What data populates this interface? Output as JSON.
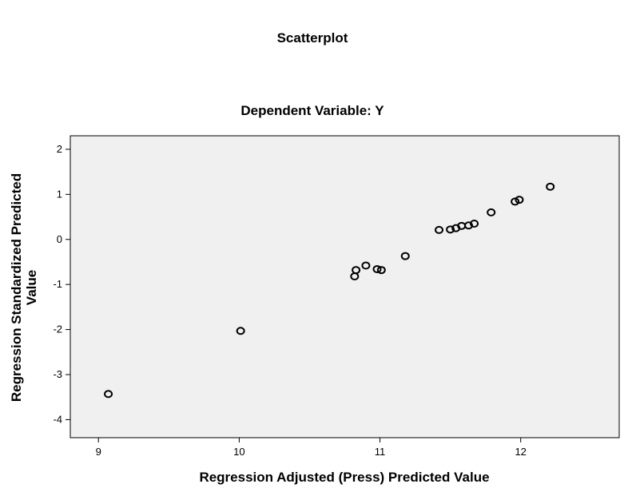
{
  "chart_data": {
    "type": "scatter",
    "title": "Scatterplot",
    "subtitle": "Dependent Variable: Y",
    "xlabel": "Regression Adjusted (Press) Predicted Value",
    "ylabel_line1": "Regression Standardized Predicted",
    "ylabel_line2": "Value",
    "xlim": [
      8.8,
      12.7
    ],
    "ylim": [
      -4.4,
      2.3
    ],
    "xticks": [
      9,
      10,
      11,
      12
    ],
    "yticks": [
      2,
      1,
      0,
      -1,
      -2,
      -3,
      -4
    ],
    "xtick_labels": [
      "9",
      "10",
      "11",
      "12"
    ],
    "ytick_labels": [
      "2",
      "1",
      "0",
      "-1",
      "-2",
      "-3",
      "-4"
    ],
    "points": [
      {
        "x": 9.07,
        "y": -3.43
      },
      {
        "x": 10.01,
        "y": -2.03
      },
      {
        "x": 10.82,
        "y": -0.82
      },
      {
        "x": 10.83,
        "y": -0.68
      },
      {
        "x": 10.9,
        "y": -0.58
      },
      {
        "x": 10.98,
        "y": -0.66
      },
      {
        "x": 11.01,
        "y": -0.68
      },
      {
        "x": 11.18,
        "y": -0.37
      },
      {
        "x": 11.42,
        "y": 0.21
      },
      {
        "x": 11.5,
        "y": 0.22
      },
      {
        "x": 11.54,
        "y": 0.25
      },
      {
        "x": 11.58,
        "y": 0.3
      },
      {
        "x": 11.63,
        "y": 0.31
      },
      {
        "x": 11.67,
        "y": 0.35
      },
      {
        "x": 11.79,
        "y": 0.6
      },
      {
        "x": 11.96,
        "y": 0.84
      },
      {
        "x": 11.99,
        "y": 0.88
      },
      {
        "x": 12.21,
        "y": 1.17
      }
    ],
    "plot_background": "#f0f0f0",
    "grid": false
  }
}
